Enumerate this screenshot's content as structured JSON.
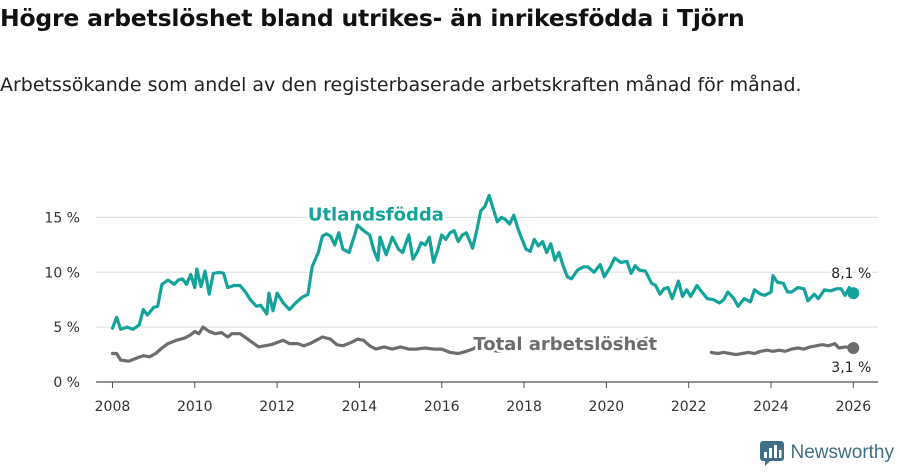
{
  "title": "Högre arbetslöshet bland utrikes- än inrikesfödda i Tjörn",
  "subtitle": "Arbetssökande som andel av den registerbaserade arbetskraften månad för månad.",
  "brand": {
    "name": "Newsworthy"
  },
  "colors": {
    "foreign": "#13a39a",
    "total": "#6d6d6d",
    "grid": "#dddddd",
    "axis": "#555555",
    "brand": "#3f6f86"
  },
  "chart_data": {
    "type": "line",
    "title": "Högre arbetslöshet bland utrikes- än inrikesfödda i Tjörn",
    "xlabel": "",
    "ylabel": "",
    "xlim": [
      2007.6,
      2026.6
    ],
    "ylim": [
      0,
      17.5
    ],
    "x_ticks": [
      2008,
      2010,
      2012,
      2014,
      2016,
      2018,
      2020,
      2022,
      2024,
      2026
    ],
    "x_tick_labels": [
      "2008",
      "2010",
      "2012",
      "2014",
      "2016",
      "2018",
      "2020",
      "2022",
      "2024",
      "2026"
    ],
    "y_ticks": [
      0,
      5,
      10,
      15
    ],
    "y_tick_labels": [
      "0 %",
      "5 %",
      "10 %",
      "15 %"
    ],
    "series": [
      {
        "name": "Utlandsfödda",
        "label_at": [
          2014.4,
          14.7
        ],
        "end_label": "8,1 %",
        "points": [
          [
            2008.0,
            4.9
          ],
          [
            2008.1,
            5.9
          ],
          [
            2008.2,
            4.8
          ],
          [
            2008.35,
            5.0
          ],
          [
            2008.5,
            4.8
          ],
          [
            2008.65,
            5.2
          ],
          [
            2008.75,
            6.6
          ],
          [
            2008.85,
            6.1
          ],
          [
            2009.0,
            6.8
          ],
          [
            2009.1,
            6.9
          ],
          [
            2009.2,
            8.9
          ],
          [
            2009.35,
            9.3
          ],
          [
            2009.5,
            8.9
          ],
          [
            2009.6,
            9.3
          ],
          [
            2009.7,
            9.4
          ],
          [
            2009.8,
            8.9
          ],
          [
            2009.9,
            9.8
          ],
          [
            2010.0,
            8.6
          ],
          [
            2010.05,
            10.3
          ],
          [
            2010.15,
            8.7
          ],
          [
            2010.25,
            10.1
          ],
          [
            2010.35,
            8.0
          ],
          [
            2010.45,
            9.9
          ],
          [
            2010.6,
            10.0
          ],
          [
            2010.7,
            9.9
          ],
          [
            2010.8,
            8.6
          ],
          [
            2010.95,
            8.8
          ],
          [
            2011.1,
            8.8
          ],
          [
            2011.25,
            8.1
          ],
          [
            2011.35,
            7.5
          ],
          [
            2011.5,
            6.9
          ],
          [
            2011.6,
            7.0
          ],
          [
            2011.75,
            6.2
          ],
          [
            2011.8,
            8.1
          ],
          [
            2011.9,
            6.5
          ],
          [
            2012.0,
            8.1
          ],
          [
            2012.15,
            7.2
          ],
          [
            2012.3,
            6.6
          ],
          [
            2012.45,
            7.2
          ],
          [
            2012.6,
            7.7
          ],
          [
            2012.75,
            8.0
          ],
          [
            2012.85,
            10.5
          ],
          [
            2013.0,
            11.8
          ],
          [
            2013.1,
            13.3
          ],
          [
            2013.2,
            13.5
          ],
          [
            2013.3,
            13.3
          ],
          [
            2013.4,
            12.5
          ],
          [
            2013.5,
            13.6
          ],
          [
            2013.6,
            12.1
          ],
          [
            2013.75,
            11.8
          ],
          [
            2013.9,
            13.6
          ],
          [
            2013.95,
            14.3
          ],
          [
            2014.1,
            13.8
          ],
          [
            2014.25,
            13.4
          ],
          [
            2014.35,
            12.0
          ],
          [
            2014.45,
            11.1
          ],
          [
            2014.5,
            13.2
          ],
          [
            2014.65,
            11.6
          ],
          [
            2014.8,
            13.2
          ],
          [
            2014.95,
            12.1
          ],
          [
            2015.05,
            11.8
          ],
          [
            2015.2,
            13.4
          ],
          [
            2015.3,
            11.2
          ],
          [
            2015.4,
            11.8
          ],
          [
            2015.5,
            12.7
          ],
          [
            2015.6,
            12.5
          ],
          [
            2015.7,
            13.2
          ],
          [
            2015.8,
            10.9
          ],
          [
            2015.9,
            12.0
          ],
          [
            2016.0,
            13.4
          ],
          [
            2016.1,
            13.0
          ],
          [
            2016.2,
            13.6
          ],
          [
            2016.3,
            13.8
          ],
          [
            2016.4,
            12.8
          ],
          [
            2016.5,
            13.4
          ],
          [
            2016.6,
            13.6
          ],
          [
            2016.75,
            12.2
          ],
          [
            2016.85,
            13.8
          ],
          [
            2016.95,
            15.6
          ],
          [
            2017.05,
            16.0
          ],
          [
            2017.15,
            17.0
          ],
          [
            2017.25,
            15.8
          ],
          [
            2017.35,
            14.6
          ],
          [
            2017.45,
            15.0
          ],
          [
            2017.55,
            14.8
          ],
          [
            2017.65,
            14.4
          ],
          [
            2017.75,
            15.2
          ],
          [
            2017.85,
            14.0
          ],
          [
            2017.95,
            13.0
          ],
          [
            2018.05,
            12.1
          ],
          [
            2018.15,
            11.9
          ],
          [
            2018.25,
            13.0
          ],
          [
            2018.35,
            12.4
          ],
          [
            2018.45,
            12.8
          ],
          [
            2018.55,
            11.8
          ],
          [
            2018.65,
            12.6
          ],
          [
            2018.75,
            11.1
          ],
          [
            2018.85,
            11.8
          ],
          [
            2018.95,
            10.6
          ],
          [
            2019.05,
            9.6
          ],
          [
            2019.15,
            9.4
          ],
          [
            2019.3,
            10.2
          ],
          [
            2019.45,
            10.5
          ],
          [
            2019.55,
            10.5
          ],
          [
            2019.7,
            10.0
          ],
          [
            2019.85,
            10.7
          ],
          [
            2019.95,
            9.6
          ],
          [
            2020.1,
            10.5
          ],
          [
            2020.2,
            11.3
          ],
          [
            2020.35,
            10.9
          ],
          [
            2020.5,
            11.0
          ],
          [
            2020.6,
            9.9
          ],
          [
            2020.7,
            10.6
          ],
          [
            2020.8,
            10.2
          ],
          [
            2020.95,
            10.1
          ],
          [
            2021.1,
            9.0
          ],
          [
            2021.2,
            8.8
          ],
          [
            2021.3,
            8.0
          ],
          [
            2021.4,
            8.5
          ],
          [
            2021.5,
            8.6
          ],
          [
            2021.6,
            7.6
          ],
          [
            2021.75,
            9.2
          ],
          [
            2021.85,
            7.8
          ],
          [
            2021.95,
            8.4
          ],
          [
            2022.05,
            7.8
          ],
          [
            2022.2,
            8.8
          ],
          [
            2022.3,
            8.3
          ],
          [
            2022.45,
            7.6
          ],
          [
            2022.6,
            7.5
          ],
          [
            2022.75,
            7.2
          ],
          [
            2022.85,
            7.5
          ],
          [
            2022.95,
            8.2
          ],
          [
            2023.1,
            7.6
          ],
          [
            2023.2,
            6.9
          ],
          [
            2023.35,
            7.6
          ],
          [
            2023.5,
            7.3
          ],
          [
            2023.6,
            8.4
          ],
          [
            2023.75,
            8.0
          ],
          [
            2023.85,
            7.9
          ],
          [
            2024.0,
            8.2
          ],
          [
            2024.05,
            9.7
          ],
          [
            2024.15,
            9.1
          ],
          [
            2024.3,
            9.0
          ],
          [
            2024.4,
            8.2
          ],
          [
            2024.5,
            8.2
          ],
          [
            2024.65,
            8.6
          ],
          [
            2024.8,
            8.5
          ],
          [
            2024.9,
            7.4
          ],
          [
            2025.05,
            8.0
          ],
          [
            2025.15,
            7.6
          ],
          [
            2025.3,
            8.4
          ],
          [
            2025.45,
            8.3
          ],
          [
            2025.6,
            8.5
          ],
          [
            2025.7,
            8.5
          ],
          [
            2025.8,
            7.9
          ],
          [
            2025.9,
            8.6
          ],
          [
            2026.0,
            8.1
          ]
        ]
      },
      {
        "name": "Total arbetslöshet",
        "label_at": [
          2019.0,
          2.9
        ],
        "end_label": "3,1 %",
        "points": [
          [
            2008.0,
            2.6
          ],
          [
            2008.1,
            2.6
          ],
          [
            2008.2,
            2.0
          ],
          [
            2008.4,
            1.9
          ],
          [
            2008.6,
            2.2
          ],
          [
            2008.75,
            2.4
          ],
          [
            2008.9,
            2.3
          ],
          [
            2009.05,
            2.6
          ],
          [
            2009.2,
            3.1
          ],
          [
            2009.35,
            3.5
          ],
          [
            2009.55,
            3.8
          ],
          [
            2009.75,
            4.0
          ],
          [
            2009.9,
            4.3
          ],
          [
            2010.0,
            4.6
          ],
          [
            2010.1,
            4.4
          ],
          [
            2010.2,
            5.0
          ],
          [
            2010.35,
            4.6
          ],
          [
            2010.5,
            4.4
          ],
          [
            2010.65,
            4.5
          ],
          [
            2010.8,
            4.1
          ],
          [
            2010.9,
            4.4
          ],
          [
            2011.1,
            4.4
          ],
          [
            2011.25,
            4.0
          ],
          [
            2011.4,
            3.6
          ],
          [
            2011.55,
            3.2
          ],
          [
            2011.7,
            3.3
          ],
          [
            2011.85,
            3.4
          ],
          [
            2012.0,
            3.6
          ],
          [
            2012.15,
            3.8
          ],
          [
            2012.3,
            3.5
          ],
          [
            2012.5,
            3.5
          ],
          [
            2012.65,
            3.3
          ],
          [
            2012.8,
            3.5
          ],
          [
            2012.95,
            3.8
          ],
          [
            2013.1,
            4.1
          ],
          [
            2013.3,
            3.9
          ],
          [
            2013.45,
            3.4
          ],
          [
            2013.6,
            3.3
          ],
          [
            2013.8,
            3.6
          ],
          [
            2013.95,
            3.9
          ],
          [
            2014.1,
            3.8
          ],
          [
            2014.25,
            3.3
          ],
          [
            2014.4,
            3.0
          ],
          [
            2014.6,
            3.2
          ],
          [
            2014.8,
            3.0
          ],
          [
            2015.0,
            3.2
          ],
          [
            2015.2,
            3.0
          ],
          [
            2015.4,
            3.0
          ],
          [
            2015.6,
            3.1
          ],
          [
            2015.8,
            3.0
          ],
          [
            2016.0,
            3.0
          ],
          [
            2016.2,
            2.7
          ],
          [
            2016.4,
            2.6
          ],
          [
            2016.6,
            2.8
          ],
          [
            2016.75,
            3.0
          ],
          [
            2016.9,
            3.3
          ],
          [
            2017.05,
            3.2
          ],
          [
            2017.2,
            2.9
          ],
          [
            2017.4,
            2.8
          ],
          [
            2017.6,
            2.9
          ]
        ],
        "points_2": [
          [
            2020.35,
            4.0
          ],
          [
            2020.45,
            3.9
          ],
          [
            2020.6,
            3.7
          ],
          [
            2020.75,
            3.8
          ],
          [
            2020.85,
            3.9
          ],
          [
            2021.0,
            4.0
          ],
          [
            2021.1,
            3.8
          ]
        ],
        "points_3": [
          [
            2022.55,
            2.7
          ],
          [
            2022.7,
            2.6
          ],
          [
            2022.85,
            2.7
          ],
          [
            2023.0,
            2.6
          ],
          [
            2023.15,
            2.5
          ],
          [
            2023.3,
            2.6
          ],
          [
            2023.45,
            2.7
          ],
          [
            2023.6,
            2.6
          ],
          [
            2023.75,
            2.8
          ],
          [
            2023.9,
            2.9
          ],
          [
            2024.05,
            2.8
          ],
          [
            2024.2,
            2.9
          ],
          [
            2024.35,
            2.8
          ],
          [
            2024.5,
            3.0
          ],
          [
            2024.65,
            3.1
          ],
          [
            2024.8,
            3.0
          ],
          [
            2024.95,
            3.2
          ],
          [
            2025.1,
            3.3
          ],
          [
            2025.25,
            3.4
          ],
          [
            2025.4,
            3.3
          ],
          [
            2025.55,
            3.5
          ],
          [
            2025.65,
            3.1
          ],
          [
            2025.8,
            3.2
          ],
          [
            2026.0,
            3.1
          ]
        ]
      }
    ]
  }
}
